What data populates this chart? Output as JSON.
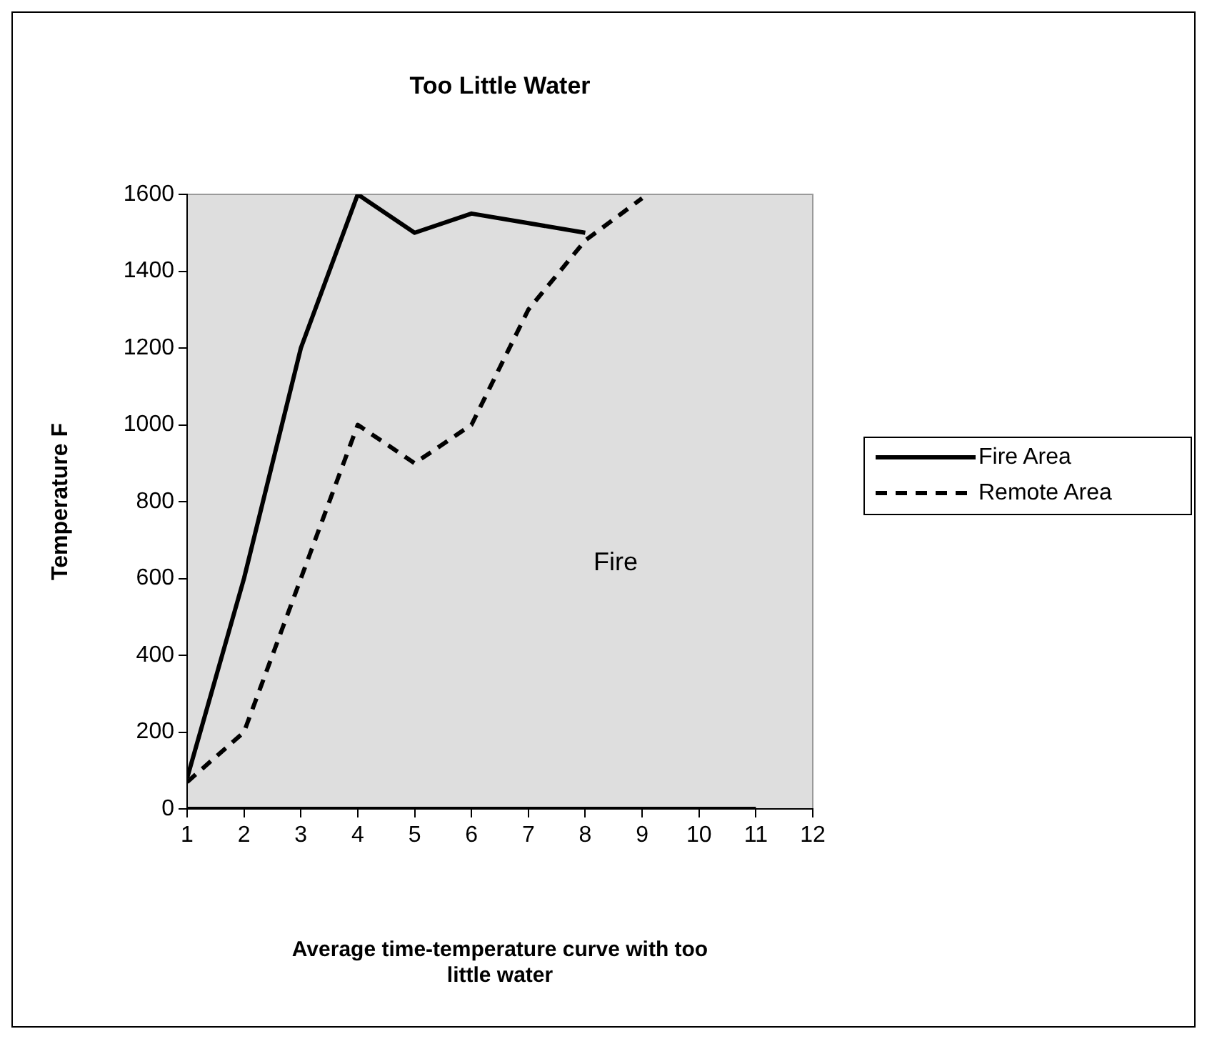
{
  "chart_data": {
    "type": "line",
    "title": "Too Little Water",
    "xlabel": "Average time-temperature curve with too little water",
    "ylabel": "Temperature F",
    "series": [
      {
        "name": "Fire Area",
        "color": "#000000",
        "line_style": "solid",
        "x": [
          1,
          2,
          3,
          4,
          5,
          6,
          7,
          8
        ],
        "values": [
          80,
          600,
          1200,
          1600,
          1500,
          1550,
          1525,
          1500
        ]
      },
      {
        "name": "Remote Area",
        "color": "#000000",
        "line_style": "dashed",
        "x": [
          1,
          2,
          3,
          4,
          5,
          6,
          7,
          8,
          9
        ],
        "values": [
          70,
          200,
          600,
          1000,
          900,
          1000,
          1300,
          1480,
          1590
        ]
      },
      {
        "color": "#000000",
        "line_style": "solid",
        "x": [
          1,
          2,
          3,
          4,
          5,
          6,
          7,
          8,
          9,
          10,
          11
        ],
        "values": [
          0,
          0,
          0,
          0,
          0,
          0,
          0,
          0,
          0,
          0,
          0
        ]
      }
    ],
    "xlim": [
      1,
      12
    ],
    "xticks": [
      1,
      2,
      3,
      4,
      5,
      6,
      7,
      8,
      9,
      10,
      11,
      12
    ],
    "ylim": [
      0,
      1600
    ],
    "yticks": [
      0,
      200,
      400,
      600,
      800,
      1000,
      1200,
      1400,
      1600
    ],
    "grid": false,
    "legend": "right",
    "marker": "none",
    "annotations": [
      "Fire"
    ]
  }
}
